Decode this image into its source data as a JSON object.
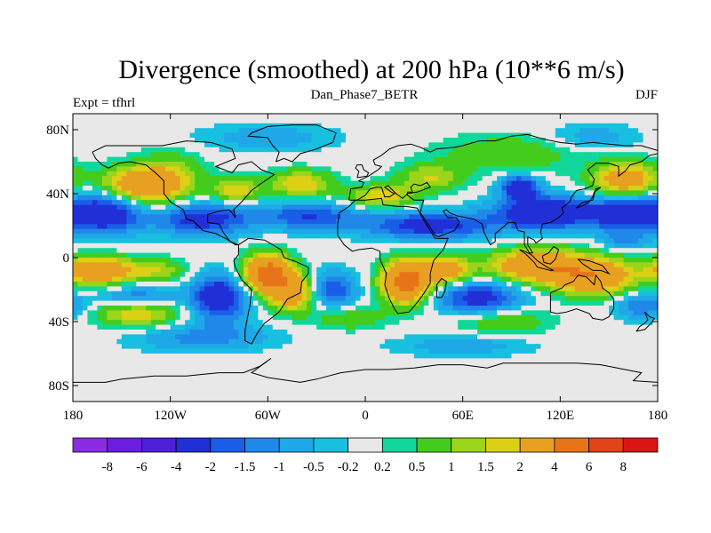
{
  "chart_data": {
    "type": "heatmap",
    "title": "Divergence (smoothed) at 200 hPa (10**6 m/s)",
    "subtitle_left": "Expt = tfhrl",
    "subtitle_center": "Dan_Phase7_BETR",
    "subtitle_right": "DJF",
    "x_ticks": [
      {
        "value": -180,
        "label": "180"
      },
      {
        "value": -120,
        "label": "120W"
      },
      {
        "value": -60,
        "label": "60W"
      },
      {
        "value": 0,
        "label": "0"
      },
      {
        "value": 60,
        "label": "60E"
      },
      {
        "value": 120,
        "label": "120E"
      },
      {
        "value": 180,
        "label": "180"
      }
    ],
    "y_ticks": [
      {
        "value": 80,
        "label": "80N"
      },
      {
        "value": 40,
        "label": "40N"
      },
      {
        "value": 0,
        "label": "0"
      },
      {
        "value": -40,
        "label": "40S"
      },
      {
        "value": -80,
        "label": "80S"
      }
    ],
    "xlim": [
      -180,
      180
    ],
    "ylim": [
      -90,
      90
    ],
    "colorbar": {
      "levels": [
        "-8",
        "-6",
        "-4",
        "-2",
        "-1.5",
        "-1",
        "-0.5",
        "-0.2",
        "0.2",
        "0.5",
        "1",
        "1.5",
        "2",
        "4",
        "6",
        "8"
      ],
      "colors": [
        "#8a2be2",
        "#6b1ee0",
        "#4d20d8",
        "#2030d6",
        "#1a5ee8",
        "#2088e8",
        "#1ea8e8",
        "#18c0e0",
        "#e8e8e8",
        "#10d89a",
        "#44cc1c",
        "#9cd41a",
        "#dcd014",
        "#e8a020",
        "#e87418",
        "#e04418",
        "#dc1414"
      ]
    },
    "features": [
      {
        "lon": -160,
        "lat": 28,
        "value": -3.0,
        "sx": 16,
        "sy": 9
      },
      {
        "lon": -100,
        "lat": 24,
        "value": -2.5,
        "sx": 20,
        "sy": 7
      },
      {
        "lon": -35,
        "lat": 26,
        "value": -2.0,
        "sx": 22,
        "sy": 6
      },
      {
        "lon": 40,
        "lat": 20,
        "value": -2.5,
        "sx": 28,
        "sy": 6
      },
      {
        "lon": 110,
        "lat": 28,
        "value": -3.5,
        "sx": 20,
        "sy": 7
      },
      {
        "lon": 160,
        "lat": 28,
        "value": -3.0,
        "sx": 16,
        "sy": 8
      },
      {
        "lon": 95,
        "lat": 44,
        "value": -3.0,
        "sx": 8,
        "sy": 5
      },
      {
        "lon": -140,
        "lat": 45,
        "value": 3.0,
        "sx": 16,
        "sy": 8
      },
      {
        "lon": -120,
        "lat": 50,
        "value": 1.5,
        "sx": 14,
        "sy": 10
      },
      {
        "lon": -80,
        "lat": 42,
        "value": 2.0,
        "sx": 10,
        "sy": 5
      },
      {
        "lon": -40,
        "lat": 46,
        "value": 2.0,
        "sx": 14,
        "sy": 6
      },
      {
        "lon": 10,
        "lat": 38,
        "value": 2.0,
        "sx": 14,
        "sy": 5
      },
      {
        "lon": 40,
        "lat": 50,
        "value": 1.5,
        "sx": 14,
        "sy": 6
      },
      {
        "lon": 90,
        "lat": 65,
        "value": 1.0,
        "sx": 30,
        "sy": 8
      },
      {
        "lon": 160,
        "lat": 48,
        "value": 3.0,
        "sx": 14,
        "sy": 8
      },
      {
        "lon": -165,
        "lat": -8,
        "value": 3.5,
        "sx": 14,
        "sy": 6
      },
      {
        "lon": -130,
        "lat": -8,
        "value": 1.5,
        "sx": 14,
        "sy": 5
      },
      {
        "lon": -60,
        "lat": -10,
        "value": 5.0,
        "sx": 10,
        "sy": 8
      },
      {
        "lon": -45,
        "lat": -22,
        "value": 3.0,
        "sx": 10,
        "sy": 8
      },
      {
        "lon": 25,
        "lat": -15,
        "value": 5.0,
        "sx": 10,
        "sy": 9
      },
      {
        "lon": 50,
        "lat": -8,
        "value": 3.0,
        "sx": 10,
        "sy": 6
      },
      {
        "lon": 105,
        "lat": -5,
        "value": 3.5,
        "sx": 20,
        "sy": 7
      },
      {
        "lon": 140,
        "lat": -12,
        "value": 3.5,
        "sx": 18,
        "sy": 8
      },
      {
        "lon": -140,
        "lat": -35,
        "value": 2.0,
        "sx": 18,
        "sy": 6
      },
      {
        "lon": -10,
        "lat": -38,
        "value": 1.0,
        "sx": 16,
        "sy": 5
      },
      {
        "lon": 85,
        "lat": -40,
        "value": 1.0,
        "sx": 20,
        "sy": 6
      },
      {
        "lon": -140,
        "lat": -25,
        "value": -1.5,
        "sx": 16,
        "sy": 5
      },
      {
        "lon": -90,
        "lat": -25,
        "value": -3.0,
        "sx": 12,
        "sy": 10
      },
      {
        "lon": -20,
        "lat": -20,
        "value": -2.0,
        "sx": 10,
        "sy": 8
      },
      {
        "lon": 70,
        "lat": -25,
        "value": -2.5,
        "sx": 18,
        "sy": 7
      },
      {
        "lon": 170,
        "lat": -30,
        "value": -1.5,
        "sx": 12,
        "sy": 6
      },
      {
        "lon": -100,
        "lat": -50,
        "value": -1.2,
        "sx": 30,
        "sy": 6
      },
      {
        "lon": 60,
        "lat": -55,
        "value": -0.8,
        "sx": 30,
        "sy": 5
      },
      {
        "lon": -60,
        "lat": 75,
        "value": -0.8,
        "sx": 30,
        "sy": 6
      },
      {
        "lon": 140,
        "lat": 75,
        "value": -0.8,
        "sx": 20,
        "sy": 6
      },
      {
        "lon": 160,
        "lat": 10,
        "value": -1.0,
        "sx": 10,
        "sy": 4
      }
    ]
  }
}
